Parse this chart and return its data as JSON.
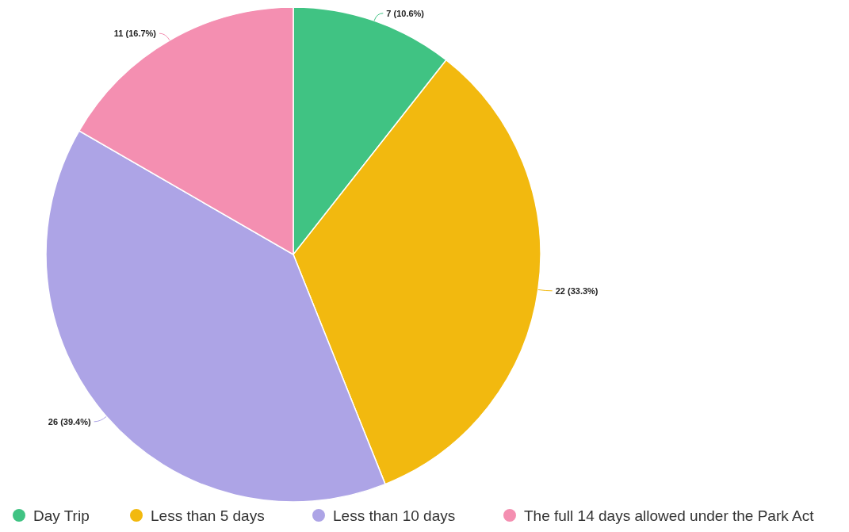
{
  "chart_data": {
    "type": "pie",
    "categories": [
      "Day Trip",
      "Less than 5 days",
      "Less than 10 days",
      "The full 14 days allowed under the Park Act"
    ],
    "values": [
      7,
      22,
      26,
      11
    ],
    "colors": [
      "#40c383",
      "#f2b90f",
      "#ada4e6",
      "#f48fb1"
    ],
    "value_labels": [
      "7 (10.6%)",
      "22 (33.3%)",
      "26 (39.4%)",
      "11 (16.7%)"
    ],
    "legend": "bottom"
  }
}
